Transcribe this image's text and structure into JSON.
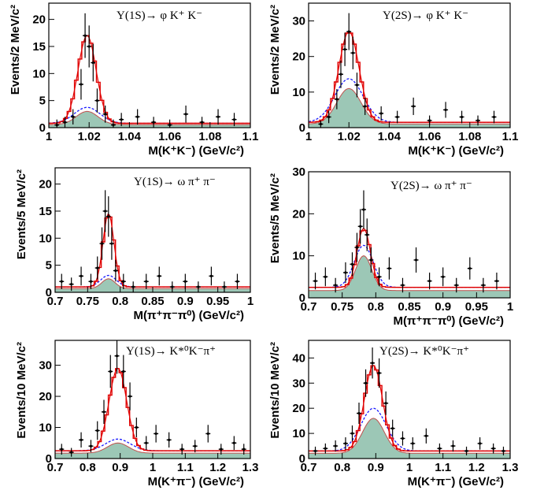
{
  "panels": [
    {
      "title": "Υ(1S)→ φ K⁺ K⁻",
      "xlabel": "M(K⁺K⁻) (GeV/c²)",
      "ylabel": "Events/2 MeV/c²",
      "xticks": [
        "1",
        "1.02",
        "1.04",
        "1.06",
        "1.08",
        "1.1"
      ],
      "yticks": [
        "0",
        "5",
        "10",
        "15",
        "20"
      ]
    },
    {
      "title": "Υ(2S)→ φ K⁺ K⁻",
      "xlabel": "M(K⁺K⁻) (GeV/c²)",
      "ylabel": "Events/2 MeV/c²",
      "xticks": [
        "1",
        "1.02",
        "1.04",
        "1.06",
        "1.08",
        "1.1"
      ],
      "yticks": [
        "0",
        "10",
        "20",
        "30"
      ]
    },
    {
      "title": "Υ(1S)→ ω π⁺ π⁻",
      "xlabel": "M(π⁺π⁻π⁰) (GeV/c²)",
      "ylabel": "Events/5 MeV/c²",
      "xticks": [
        "0.7",
        "0.75",
        "0.8",
        "0.85",
        "0.9",
        "0.95",
        "1"
      ],
      "yticks": [
        "0",
        "5",
        "10",
        "15",
        "20"
      ]
    },
    {
      "title": "Υ(2S)→ ω π⁺ π⁻",
      "xlabel": "M(π⁺π⁻π⁰) (GeV/c²)",
      "ylabel": "Events/5 MeV/c²",
      "xticks": [
        "0.7",
        "0.75",
        "0.8",
        "0.85",
        "0.9",
        "0.95",
        "1"
      ],
      "yticks": [
        "0",
        "10",
        "20",
        "30"
      ]
    },
    {
      "title": "Υ(1S)→ K*⁰K⁻π⁺",
      "xlabel": "M(K⁺π⁻) (GeV/c²)",
      "ylabel": "Events/10 MeV/c²",
      "xticks": [
        "0.7",
        "0.8",
        "0.9",
        "1",
        "1.1",
        "1.2",
        "1.3"
      ],
      "yticks": [
        "0",
        "10",
        "20",
        "30"
      ]
    },
    {
      "title": "Υ(2S)→ K*⁰K⁻π⁺",
      "xlabel": "M(K⁺π⁻) (GeV/c²)",
      "ylabel": "Events/10 MeV/c²",
      "xticks": [
        "0.7",
        "0.8",
        "0.9",
        "1",
        "1.1",
        "1.2",
        "1.3"
      ],
      "yticks": [
        "0",
        "10",
        "20",
        "30",
        "40"
      ]
    }
  ],
  "colors": {
    "data": "#000000",
    "total_fit": "#e00000",
    "background_dashed": "#1a1aff",
    "background_fill": "#9cc7b6",
    "background_fill_edge": "#c0504d"
  },
  "chart_data": [
    {
      "type": "line",
      "xlim": [
        1.0,
        1.1
      ],
      "ylim": [
        0,
        23
      ],
      "grid": false,
      "peak": {
        "x": 1.019,
        "width": 0.0045,
        "total_height": 17,
        "background_height": 3
      },
      "flat_background": 0.8,
      "data_points": {
        "x": [
          1.004,
          1.008,
          1.012,
          1.016,
          1.018,
          1.02,
          1.022,
          1.024,
          1.028,
          1.032,
          1.036,
          1.044,
          1.052,
          1.06,
          1.068,
          1.076,
          1.084,
          1.092
        ],
        "y": [
          0.5,
          1,
          2,
          8,
          17,
          15,
          12,
          5,
          2.5,
          0.5,
          1.5,
          2,
          1,
          0.5,
          2.5,
          1,
          2,
          1.5
        ]
      }
    },
    {
      "type": "line",
      "xlim": [
        1.0,
        1.1
      ],
      "ylim": [
        0,
        35
      ],
      "grid": false,
      "peak": {
        "x": 1.02,
        "width": 0.005,
        "total_height": 27,
        "background_height": 11
      },
      "flat_background": 1.5,
      "data_points": {
        "x": [
          1.006,
          1.01,
          1.014,
          1.016,
          1.018,
          1.02,
          1.022,
          1.024,
          1.028,
          1.036,
          1.044,
          1.052,
          1.06,
          1.068,
          1.076,
          1.084,
          1.092
        ],
        "y": [
          1,
          3,
          8,
          15,
          22,
          27,
          21,
          12,
          6,
          4,
          3,
          6,
          2,
          5,
          3,
          2,
          3
        ]
      }
    },
    {
      "type": "line",
      "xlim": [
        0.7,
        1.0
      ],
      "ylim": [
        0,
        23
      ],
      "grid": false,
      "peak": {
        "x": 0.782,
        "width": 0.0085,
        "total_height": 14.5,
        "background_height": 2.5
      },
      "flat_background": 1.0,
      "data_points": {
        "x": [
          0.71,
          0.725,
          0.74,
          0.755,
          0.765,
          0.772,
          0.777,
          0.782,
          0.787,
          0.793,
          0.805,
          0.82,
          0.84,
          0.86,
          0.88,
          0.9,
          0.92,
          0.94,
          0.96,
          0.98
        ],
        "y": [
          2,
          1.5,
          3,
          2,
          4.5,
          9,
          15,
          14,
          9,
          4,
          2,
          1,
          2,
          3,
          1,
          2,
          1,
          3,
          1,
          2
        ]
      }
    },
    {
      "type": "line",
      "xlim": [
        0.7,
        1.0
      ],
      "ylim": [
        0,
        30
      ],
      "grid": false,
      "peak": {
        "x": 0.782,
        "width": 0.01,
        "total_height": 16.5,
        "background_height": 10
      },
      "flat_background": 2.5,
      "data_points": {
        "x": [
          0.71,
          0.725,
          0.74,
          0.755,
          0.765,
          0.772,
          0.777,
          0.782,
          0.787,
          0.793,
          0.805,
          0.82,
          0.84,
          0.86,
          0.88,
          0.9,
          0.92,
          0.94,
          0.96,
          0.98
        ],
        "y": [
          4,
          5,
          3,
          6,
          8,
          12,
          17,
          21,
          15,
          9,
          5,
          7,
          3,
          9,
          4,
          5,
          3,
          7,
          3,
          4
        ]
      }
    },
    {
      "type": "line",
      "xlim": [
        0.7,
        1.3
      ],
      "ylim": [
        0,
        38
      ],
      "grid": false,
      "peak": {
        "x": 0.893,
        "width": 0.027,
        "total_height": 29,
        "background_height": 5
      },
      "flat_background": 2.5,
      "data_points": {
        "x": [
          0.72,
          0.75,
          0.78,
          0.81,
          0.83,
          0.85,
          0.87,
          0.89,
          0.91,
          0.93,
          0.95,
          0.98,
          1.01,
          1.05,
          1.09,
          1.13,
          1.17,
          1.21,
          1.25,
          1.28
        ],
        "y": [
          3,
          2,
          6,
          4,
          9,
          15,
          28,
          33,
          28,
          20,
          10,
          5,
          8,
          6,
          3,
          4,
          8,
          3,
          5,
          3
        ]
      }
    },
    {
      "type": "line",
      "xlim": [
        0.7,
        1.3
      ],
      "ylim": [
        0,
        47
      ],
      "grid": false,
      "peak": {
        "x": 0.893,
        "width": 0.027,
        "total_height": 37,
        "background_height": 16
      },
      "flat_background": 3.0,
      "data_points": {
        "x": [
          0.72,
          0.75,
          0.78,
          0.81,
          0.83,
          0.85,
          0.87,
          0.89,
          0.91,
          0.93,
          0.95,
          0.98,
          1.01,
          1.05,
          1.09,
          1.13,
          1.17,
          1.21,
          1.25,
          1.28
        ],
        "y": [
          3,
          4,
          5,
          6,
          10,
          18,
          30,
          38,
          34,
          22,
          12,
          8,
          6,
          9,
          4,
          5,
          3,
          6,
          4,
          3
        ]
      }
    }
  ]
}
